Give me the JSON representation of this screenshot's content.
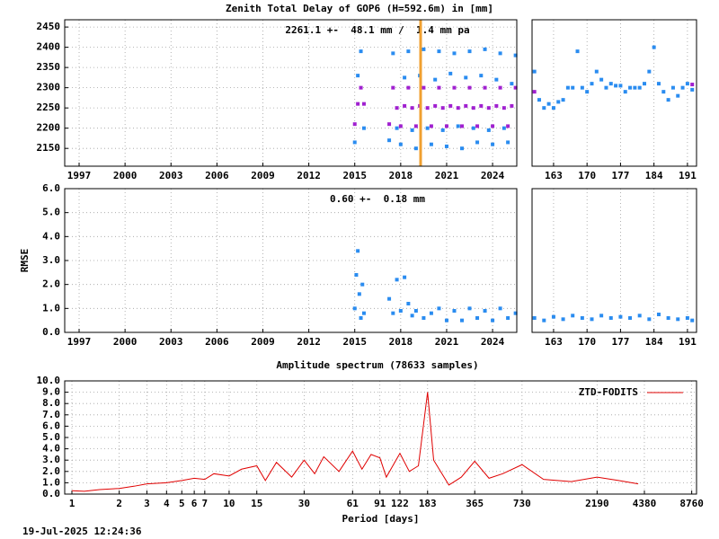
{
  "chart_data": [
    {
      "type": "scatter",
      "title": "Zenith Total Delay of GOP6 (H=592.6m) in [mm]",
      "annotation": "2261.1 +-  48.1 mm /  1.4 mm pa",
      "xlim": [
        1996.06,
        2025.58
      ],
      "xticks": [
        1997,
        2000,
        2003,
        2006,
        2009,
        2012,
        2015,
        2018,
        2021,
        2024
      ],
      "ylim": [
        2106,
        2468
      ],
      "yticks": [
        2150,
        2200,
        2250,
        2300,
        2350,
        2400,
        2450
      ],
      "grid": true,
      "vline": 2019.3,
      "vline_color": "#f0a030",
      "series": [
        {
          "color": "#2a8cf0",
          "x": [
            2015.0,
            2015.2,
            2015.4,
            2015.6,
            2017.25,
            2017.5,
            2017.75,
            2018.0,
            2018.25,
            2018.5,
            2018.75,
            2019.0,
            2019.25,
            2019.5,
            2019.75,
            2020.0,
            2020.25,
            2020.5,
            2020.75,
            2021.0,
            2021.25,
            2021.5,
            2021.75,
            2022.0,
            2022.25,
            2022.5,
            2022.75,
            2023.0,
            2023.25,
            2023.5,
            2023.75,
            2024.0,
            2024.25,
            2024.5,
            2024.75,
            2025.0,
            2025.25,
            2025.5
          ],
          "values": [
            2165,
            2330,
            2390,
            2200,
            2170,
            2385,
            2200,
            2160,
            2325,
            2390,
            2195,
            2150,
            2330,
            2395,
            2200,
            2160,
            2320,
            2390,
            2195,
            2155,
            2335,
            2385,
            2205,
            2150,
            2325,
            2390,
            2200,
            2165,
            2330,
            2395,
            2195,
            2160,
            2320,
            2385,
            2200,
            2165,
            2310,
            2380
          ]
        },
        {
          "color": "#a020d0",
          "x": [
            2015.0,
            2015.2,
            2015.4,
            2015.6,
            2017.25,
            2017.5,
            2017.75,
            2018.0,
            2018.25,
            2018.5,
            2018.75,
            2019.0,
            2019.25,
            2019.5,
            2019.75,
            2020.0,
            2020.25,
            2020.5,
            2020.75,
            2021.0,
            2021.25,
            2021.5,
            2021.75,
            2022.0,
            2022.25,
            2022.5,
            2022.75,
            2023.0,
            2023.25,
            2023.5,
            2023.75,
            2024.0,
            2024.25,
            2024.5,
            2024.75,
            2025.0,
            2025.25,
            2025.5
          ],
          "values": [
            2210,
            2260,
            2300,
            2260,
            2210,
            2300,
            2250,
            2205,
            2255,
            2300,
            2250,
            2205,
            2255,
            2300,
            2250,
            2205,
            2255,
            2300,
            2250,
            2205,
            2255,
            2300,
            2250,
            2205,
            2255,
            2300,
            2250,
            2205,
            2255,
            2300,
            2250,
            2205,
            2255,
            2300,
            2250,
            2205,
            2255,
            2300
          ]
        }
      ]
    },
    {
      "type": "scatter",
      "xlim": [
        158.5,
        192.9
      ],
      "xticks": [
        163,
        170,
        177,
        184,
        191
      ],
      "ylim": [
        2106,
        2468
      ],
      "grid": true,
      "series": [
        {
          "color": "#2a8cf0",
          "x": [
            159,
            160,
            161,
            162,
            163,
            164,
            165,
            166,
            167,
            168,
            169,
            170,
            171,
            172,
            173,
            174,
            175,
            176,
            177,
            178,
            179,
            180,
            181,
            182,
            183,
            184,
            185,
            186,
            187,
            188,
            189,
            190,
            191,
            192
          ],
          "values": [
            2340,
            2270,
            2250,
            2260,
            2250,
            2265,
            2270,
            2300,
            2300,
            2390,
            2300,
            2290,
            2310,
            2340,
            2320,
            2300,
            2310,
            2305,
            2305,
            2290,
            2300,
            2300,
            2300,
            2310,
            2340,
            2400,
            2310,
            2290,
            2270,
            2300,
            2280,
            2300,
            2310,
            2295
          ]
        },
        {
          "color": "#a020d0",
          "x": [
            159,
            192
          ],
          "values": [
            2290,
            2308
          ]
        }
      ]
    },
    {
      "type": "scatter",
      "annotation": "0.60 +-  0.18 mm",
      "y_label": "RMSE",
      "xlim": [
        1996.06,
        2025.58
      ],
      "xticks": [
        1997,
        2000,
        2003,
        2006,
        2009,
        2012,
        2015,
        2018,
        2021,
        2024
      ],
      "ylim": [
        0,
        6
      ],
      "yticks": [
        {
          "value": 0,
          "label": "0.0"
        },
        {
          "value": 1,
          "label": "1.0"
        },
        {
          "value": 2,
          "label": "2.0"
        },
        {
          "value": 3,
          "label": "3.0"
        },
        {
          "value": 4,
          "label": "4.0"
        },
        {
          "value": 5,
          "label": "5.0"
        },
        {
          "value": 6,
          "label": "6.0"
        }
      ],
      "grid": true,
      "series": [
        {
          "color": "#2a8cf0",
          "x": [
            2015.0,
            2015.1,
            2015.2,
            2015.3,
            2015.4,
            2015.5,
            2015.6,
            2017.25,
            2017.5,
            2017.75,
            2018.0,
            2018.25,
            2018.5,
            2018.75,
            2019.0,
            2019.5,
            2020.0,
            2020.5,
            2021.0,
            2021.5,
            2022.0,
            2022.5,
            2023.0,
            2023.5,
            2024.0,
            2024.5,
            2025.0,
            2025.5
          ],
          "values": [
            1.0,
            2.4,
            3.4,
            1.6,
            0.6,
            2.0,
            0.8,
            1.4,
            0.8,
            2.2,
            0.9,
            2.3,
            1.2,
            0.7,
            0.9,
            0.6,
            0.8,
            1.0,
            0.5,
            0.9,
            0.5,
            1.0,
            0.6,
            0.9,
            0.5,
            1.0,
            0.6,
            0.8
          ]
        }
      ]
    },
    {
      "type": "scatter",
      "xlim": [
        158.5,
        192.9
      ],
      "xticks": [
        163,
        170,
        177,
        184,
        191
      ],
      "ylim": [
        0,
        6
      ],
      "grid": true,
      "series": [
        {
          "color": "#2a8cf0",
          "x": [
            159,
            161,
            163,
            165,
            167,
            169,
            171,
            173,
            175,
            177,
            179,
            181,
            183,
            185,
            187,
            189,
            191,
            192
          ],
          "values": [
            0.6,
            0.5,
            0.65,
            0.55,
            0.7,
            0.6,
            0.55,
            0.7,
            0.6,
            0.65,
            0.6,
            0.7,
            0.55,
            0.75,
            0.6,
            0.55,
            0.6,
            0.5
          ]
        }
      ]
    },
    {
      "type": "line",
      "title": "Amplitude spectrum (78633 samples)",
      "x_label": "Period [days]",
      "xlog": true,
      "xlim": [
        0.9,
        9400
      ],
      "xticks": [
        1,
        2,
        3,
        4,
        5,
        6,
        7,
        10,
        15,
        30,
        61,
        91,
        122,
        183,
        365,
        730,
        2190,
        4380,
        8760
      ],
      "ylim": [
        0,
        10
      ],
      "yticks": [
        {
          "value": 0,
          "label": "0.0"
        },
        {
          "value": 1,
          "label": "1.0"
        },
        {
          "value": 2,
          "label": "2.0"
        },
        {
          "value": 3,
          "label": "3.0"
        },
        {
          "value": 4,
          "label": "4.0"
        },
        {
          "value": 5,
          "label": "5.0"
        },
        {
          "value": 6,
          "label": "6.0"
        },
        {
          "value": 7,
          "label": "7.0"
        },
        {
          "value": 8,
          "label": "8.0"
        },
        {
          "value": 9,
          "label": "9.0"
        },
        {
          "value": 10,
          "label": "10.0"
        }
      ],
      "grid": true,
      "legend": "top-right",
      "x": [
        1,
        1.2,
        1.5,
        2,
        2.5,
        3,
        4,
        5,
        6,
        7,
        8,
        10,
        12,
        15,
        17,
        20,
        25,
        30,
        35,
        40,
        50,
        61,
        70,
        80,
        91,
        100,
        122,
        140,
        160,
        183,
        200,
        250,
        300,
        365,
        450,
        550,
        730,
        1000,
        1500,
        2190,
        3000,
        4000
      ],
      "series": [
        {
          "name": "ZTD-FODITS",
          "color": "#e00000",
          "values": [
            0.3,
            0.25,
            0.4,
            0.5,
            0.7,
            0.9,
            1.0,
            1.2,
            1.4,
            1.3,
            1.8,
            1.6,
            2.2,
            2.5,
            1.2,
            2.8,
            1.5,
            3.0,
            1.8,
            3.3,
            2.0,
            3.8,
            2.2,
            3.5,
            3.2,
            1.5,
            3.6,
            2.0,
            2.5,
            9.0,
            3.0,
            0.8,
            1.5,
            2.9,
            1.4,
            1.8,
            2.6,
            1.3,
            1.1,
            1.5,
            1.2,
            0.9
          ]
        }
      ]
    }
  ],
  "footer": {
    "timestamp": "19-Jul-2025 12:24:36"
  }
}
